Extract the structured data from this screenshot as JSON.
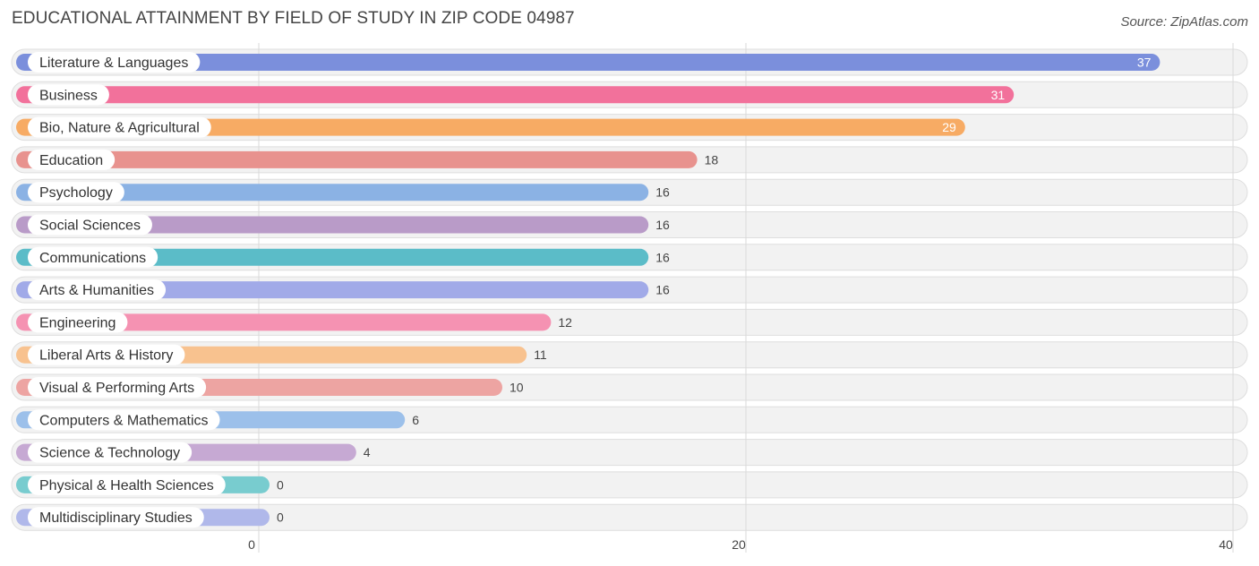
{
  "header": {
    "title": "EDUCATIONAL ATTAINMENT BY FIELD OF STUDY IN ZIP CODE 04987",
    "source": "Source: ZipAtlas.com"
  },
  "chart_data": {
    "type": "bar",
    "orientation": "horizontal",
    "title": "EDUCATIONAL ATTAINMENT BY FIELD OF STUDY IN ZIP CODE 04987",
    "categories": [
      "Literature & Languages",
      "Business",
      "Bio, Nature & Agricultural",
      "Education",
      "Psychology",
      "Social Sciences",
      "Communications",
      "Arts & Humanities",
      "Engineering",
      "Liberal Arts & History",
      "Visual & Performing Arts",
      "Computers & Mathematics",
      "Science & Technology",
      "Physical & Health Sciences",
      "Multidisciplinary Studies"
    ],
    "values": [
      37,
      31,
      29,
      18,
      16,
      16,
      16,
      16,
      12,
      11,
      10,
      6,
      4,
      0,
      0
    ],
    "colors": [
      "#7b8fdc",
      "#f2719b",
      "#f7ab64",
      "#e8928e",
      "#8bb2e4",
      "#b99bc8",
      "#5bbcc8",
      "#a1aae8",
      "#f592b2",
      "#f8c28f",
      "#eda4a2",
      "#9cc0ea",
      "#c6a9d3",
      "#78cccf",
      "#b0b8ea"
    ],
    "xlim": [
      0,
      40
    ],
    "xticks": [
      "0",
      "20",
      "40"
    ],
    "xlabel": "",
    "ylabel": "",
    "grid": true
  }
}
